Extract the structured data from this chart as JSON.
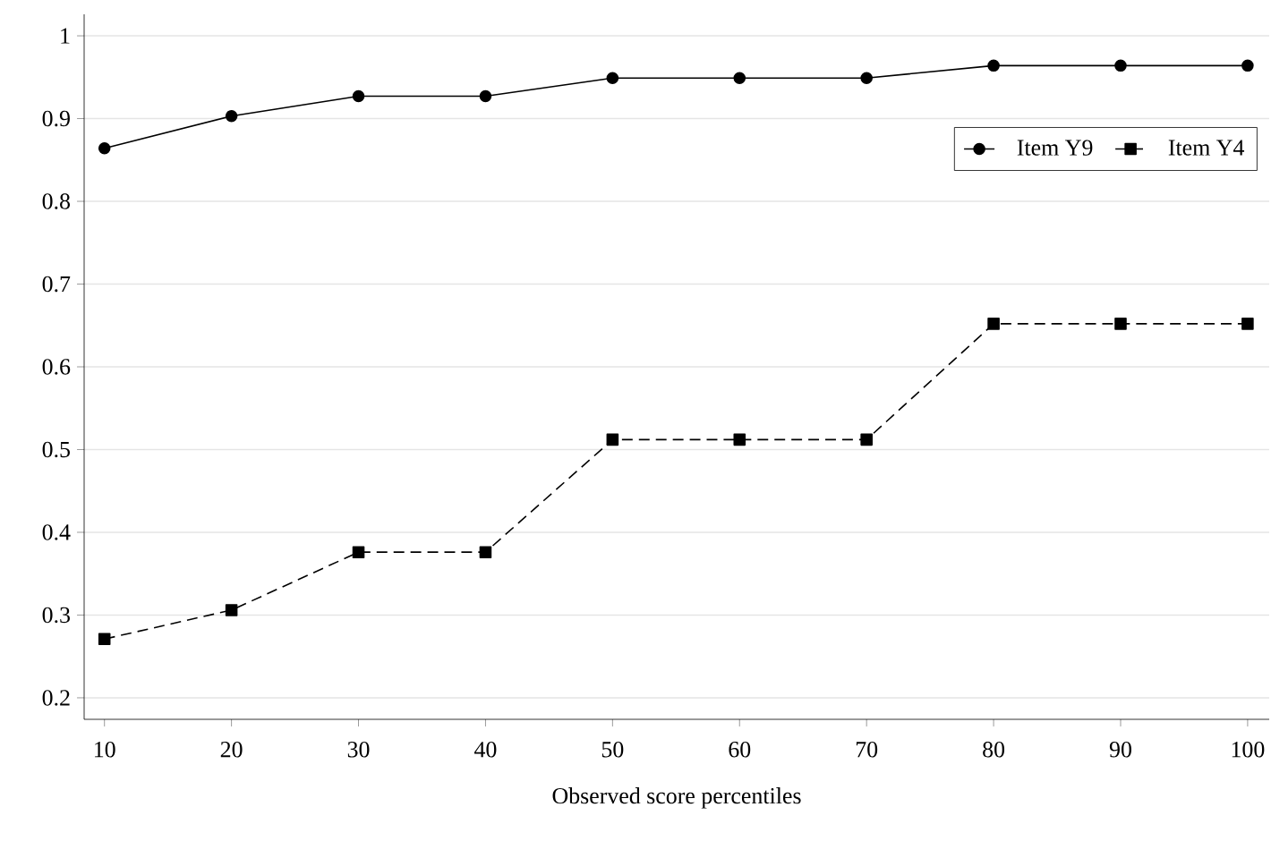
{
  "chart_data": {
    "type": "line",
    "xlabel": "Observed score percentiles",
    "x": [
      10,
      20,
      30,
      40,
      50,
      60,
      70,
      80,
      90,
      100
    ],
    "series": [
      {
        "name": "Item Y9",
        "color": "#000000",
        "marker": "circle",
        "line_style": "solid",
        "values": [
          0.864,
          0.903,
          0.927,
          0.927,
          0.949,
          0.949,
          0.949,
          0.964,
          0.964,
          0.964
        ]
      },
      {
        "name": "Item Y4",
        "color": "#000000",
        "marker": "square",
        "line_style": "dashed",
        "values": [
          0.271,
          0.306,
          0.376,
          0.376,
          0.512,
          0.512,
          0.512,
          0.652,
          0.652,
          0.652
        ]
      }
    ],
    "xlim": [
      8.4,
      101.7
    ],
    "ylim": [
      0.174,
      1.026
    ],
    "xticks": [
      10,
      20,
      30,
      40,
      50,
      60,
      70,
      80,
      90,
      100
    ],
    "yticks": [
      0.2,
      0.3,
      0.4,
      0.5,
      0.6,
      0.7,
      0.8,
      0.9,
      {
        "value": 1,
        "label": "1"
      }
    ],
    "grid": "y",
    "legend": "top right"
  }
}
